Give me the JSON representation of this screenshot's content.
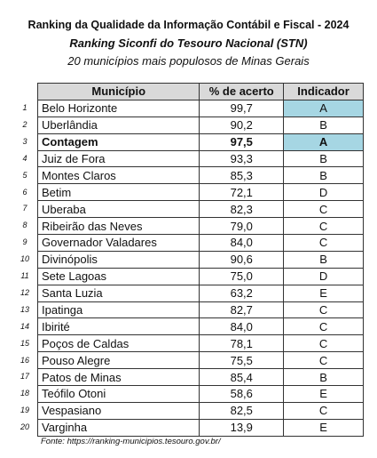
{
  "header": {
    "title": "Ranking da Qualidade da Informação Contábil e Fiscal - 2024",
    "subtitle": "Ranking Siconfi do Tesouro Nacional (STN)",
    "description": "20 municípios mais populosos de Minas Gerais"
  },
  "table": {
    "columns": [
      "Município",
      "% de acerto",
      "Indicador"
    ],
    "header_color": "#d9d9d9",
    "rows": [
      {
        "n": "1",
        "municipio": "Belo Horizonte",
        "acerto": "99,7",
        "indicador": "A",
        "highlight": "#a6d6e3"
      },
      {
        "n": "2",
        "municipio": "Uberlândia",
        "acerto": "90,2",
        "indicador": "B"
      },
      {
        "n": "3",
        "municipio": "Contagem",
        "acerto": "97,5",
        "indicador": "A",
        "highlight": "#a6d6e3",
        "bold": true
      },
      {
        "n": "4",
        "municipio": "Juiz de Fora",
        "acerto": "93,3",
        "indicador": "B"
      },
      {
        "n": "5",
        "municipio": "Montes Claros",
        "acerto": "85,3",
        "indicador": "B"
      },
      {
        "n": "6",
        "municipio": "Betim",
        "acerto": "72,1",
        "indicador": "D"
      },
      {
        "n": "7",
        "municipio": "Uberaba",
        "acerto": "82,3",
        "indicador": "C"
      },
      {
        "n": "8",
        "municipio": "Ribeirão das Neves",
        "acerto": "79,0",
        "indicador": "C"
      },
      {
        "n": "9",
        "municipio": "Governador Valadares",
        "acerto": "84,0",
        "indicador": "C"
      },
      {
        "n": "10",
        "municipio": "Divinópolis",
        "acerto": "90,6",
        "indicador": "B"
      },
      {
        "n": "11",
        "municipio": "Sete Lagoas",
        "acerto": "75,0",
        "indicador": "D"
      },
      {
        "n": "12",
        "municipio": "Santa Luzia",
        "acerto": "63,2",
        "indicador": "E"
      },
      {
        "n": "13",
        "municipio": "Ipatinga",
        "acerto": "82,7",
        "indicador": "C"
      },
      {
        "n": "14",
        "municipio": "Ibirité",
        "acerto": "84,0",
        "indicador": "C"
      },
      {
        "n": "15",
        "municipio": "Poços de Caldas",
        "acerto": "78,1",
        "indicador": "C"
      },
      {
        "n": "16",
        "municipio": "Pouso Alegre",
        "acerto": "75,5",
        "indicador": "C"
      },
      {
        "n": "17",
        "municipio": "Patos de Minas",
        "acerto": "85,4",
        "indicador": "B"
      },
      {
        "n": "18",
        "municipio": "Teófilo Otoni",
        "acerto": "58,6",
        "indicador": "E"
      },
      {
        "n": "19",
        "municipio": "Vespasiano",
        "acerto": "82,5",
        "indicador": "C"
      },
      {
        "n": "20",
        "municipio": "Varginha",
        "acerto": "13,9",
        "indicador": "E"
      }
    ]
  },
  "footer": {
    "source": "Fonte: https://ranking-municipios.tesouro.gov.br/"
  }
}
